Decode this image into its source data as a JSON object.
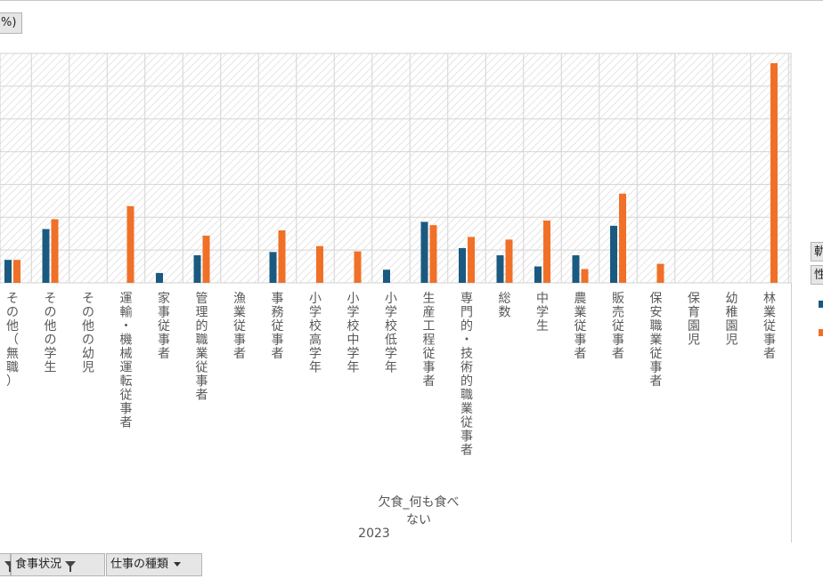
{
  "header": {
    "value_field_label": "%)"
  },
  "legend": {
    "field_labels": [
      "軌",
      "性"
    ],
    "series_colors": [
      "#1a5a80",
      "#f07028"
    ]
  },
  "filters": [
    {
      "label": "食事状況",
      "icon": "filter-icon"
    },
    {
      "label": "仕事の種類",
      "icon": "dropdown-icon"
    }
  ],
  "chart_data": {
    "type": "bar",
    "categories": [
      "その他（無職）",
      "その他の学生",
      "その他の幼児",
      "運輸・機械運転従事者",
      "家事従事者",
      "管理的職業従事者",
      "漁業従事者",
      "事務従事者",
      "小学校高学年",
      "小学校中学年",
      "小学校低学年",
      "生産工程従事者",
      "専門的・技術的職業従事者",
      "総数",
      "中学生",
      "農業従事者",
      "販売従事者",
      "保安職業従事者",
      "保育園児",
      "幼稚園児",
      "林業従事者"
    ],
    "series": [
      {
        "color": "#1a5a80",
        "values": [
          3.5,
          8.2,
          null,
          null,
          1.5,
          4.2,
          null,
          4.7,
          null,
          null,
          2.0,
          9.3,
          5.3,
          4.2,
          2.5,
          4.2,
          8.7,
          null,
          null,
          null,
          null
        ]
      },
      {
        "color": "#f07028",
        "values": [
          3.5,
          9.7,
          null,
          11.7,
          null,
          7.2,
          null,
          8.0,
          5.6,
          4.8,
          null,
          8.8,
          7.0,
          6.6,
          9.5,
          2.1,
          13.6,
          2.9,
          null,
          null,
          33.5
        ]
      }
    ],
    "group_label": "欠食_何も食べない",
    "year": "2023",
    "ylim": [
      0,
      35
    ],
    "grid": true
  }
}
